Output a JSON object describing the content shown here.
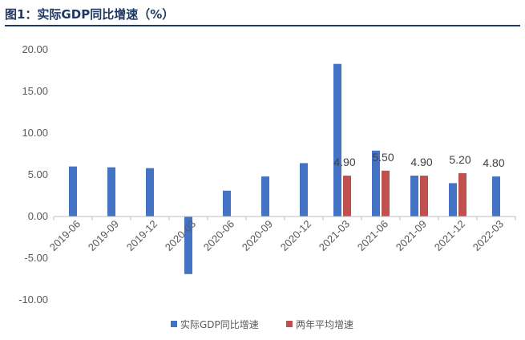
{
  "figure_title": "图1：实际GDP同比增速（%）",
  "chart_data": {
    "type": "bar",
    "categories": [
      "2019-06",
      "2019-09",
      "2019-12",
      "2020-03",
      "2020-06",
      "2020-09",
      "2020-12",
      "2021-03",
      "2021-06",
      "2021-09",
      "2021-12",
      "2022-03"
    ],
    "series": [
      {
        "name": "实际GDP同比增速",
        "color": "#4472c4",
        "values": [
          6.0,
          5.9,
          5.8,
          -6.9,
          3.1,
          4.8,
          6.4,
          18.3,
          7.9,
          4.9,
          4.0,
          4.8
        ]
      },
      {
        "name": "两年平均增速",
        "color": "#c0504d",
        "values": [
          null,
          null,
          null,
          null,
          null,
          null,
          null,
          4.9,
          5.5,
          4.9,
          5.2,
          null
        ]
      }
    ],
    "data_labels": [
      {
        "category": "2021-03",
        "text": "4.90"
      },
      {
        "category": "2021-06",
        "text": "5.50"
      },
      {
        "category": "2021-09",
        "text": "4.90"
      },
      {
        "category": "2021-12",
        "text": "5.20"
      },
      {
        "category": "2022-03",
        "text": "4.80"
      }
    ],
    "ylim": [
      -10,
      20
    ],
    "yticks": [
      "-10.00",
      "-5.00",
      "0.00",
      "5.00",
      "10.00",
      "15.00",
      "20.00"
    ],
    "grid": false,
    "legend": "bottom"
  }
}
